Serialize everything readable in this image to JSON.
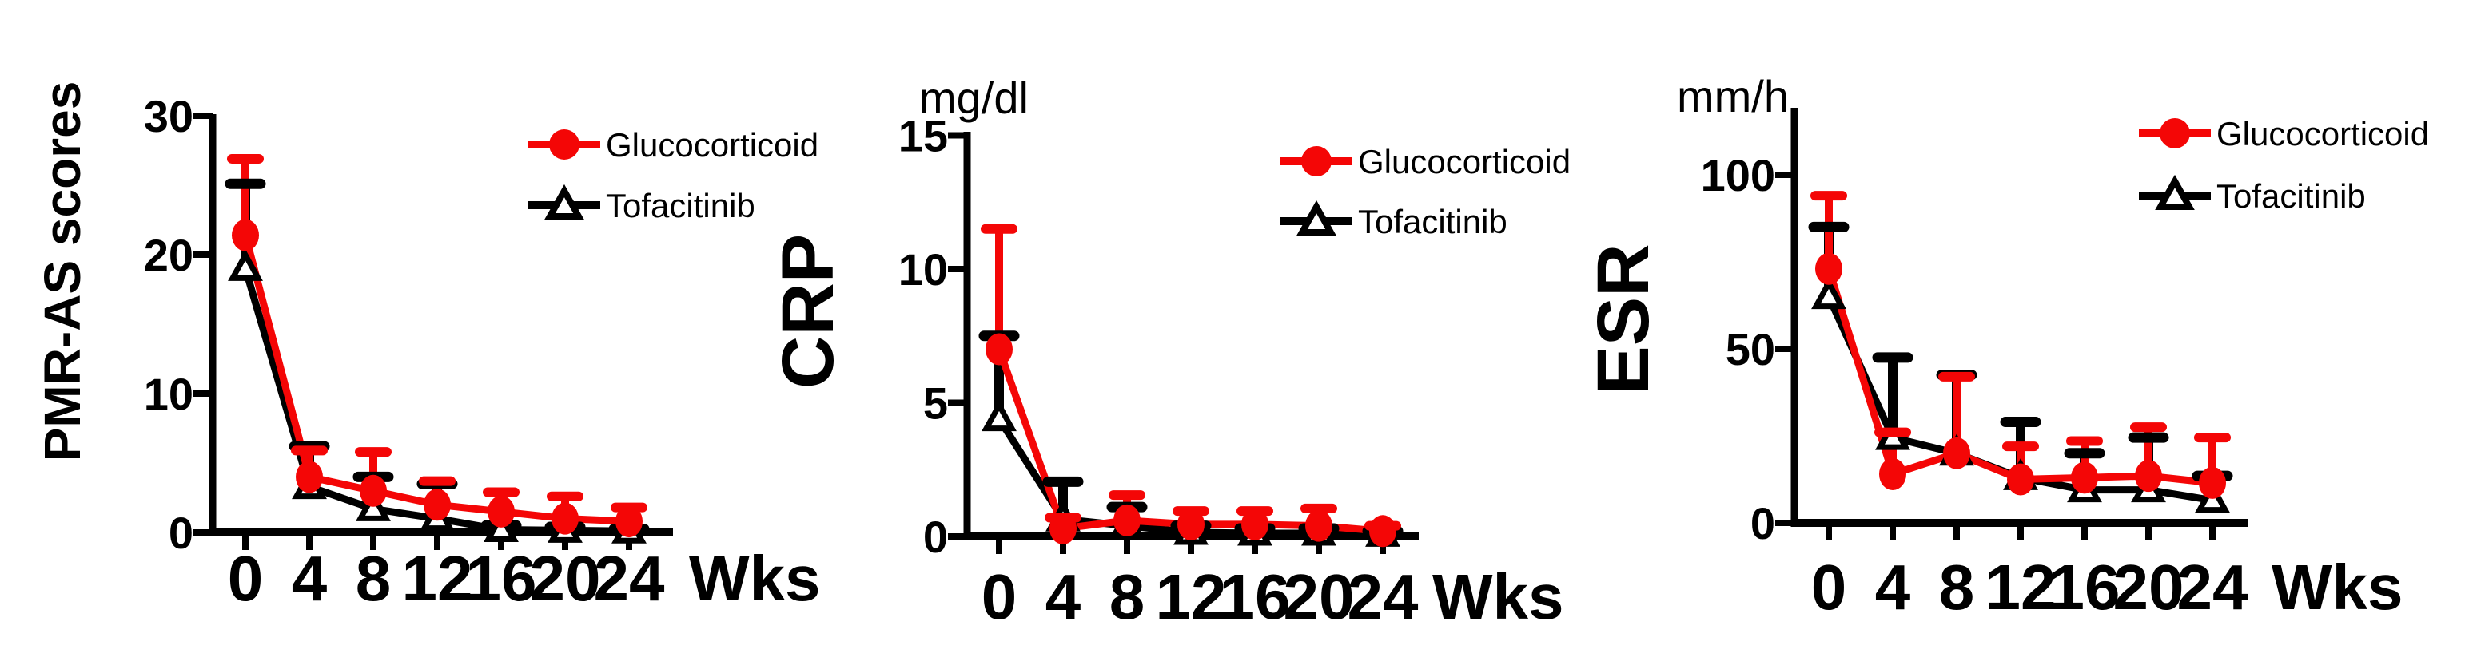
{
  "figure": {
    "description": "Time-course line charts with upper error bars over 24 weeks comparing Glucocorticoid vs Tofacitinib",
    "colors": {
      "glucocorticoid": "#f40606",
      "tofacitinib": "#000000",
      "axis": "#000000",
      "background": "#ffffff"
    }
  },
  "legend": {
    "items": [
      {
        "label": "Glucocorticoid",
        "marker": "filled-circle-icon",
        "color": "#f40606"
      },
      {
        "label": "Tofacitinib",
        "marker": "open-triangle-icon",
        "color": "#000000"
      }
    ]
  },
  "chart_data": [
    {
      "id": "pmr-as",
      "type": "line",
      "title": "",
      "ylabel": "PMR-AS scores",
      "unit": "",
      "xlabel": "Wks",
      "x": [
        0,
        4,
        8,
        12,
        16,
        20,
        24
      ],
      "y_ticks": [
        0,
        10,
        20,
        30
      ],
      "ylim": [
        0,
        31
      ],
      "grid": false,
      "legend_position": "upper-right",
      "error_bars": "upper-only",
      "series": [
        {
          "name": "Glucocorticoid",
          "marker": "filled-circle",
          "color": "#f40606",
          "values": [
            21.4,
            4.0,
            3.0,
            2.0,
            1.5,
            1.0,
            0.8
          ],
          "err_top": [
            26.9,
            5.9,
            5.8,
            3.7,
            2.9,
            2.6,
            1.8
          ]
        },
        {
          "name": "Tofacitinib",
          "marker": "open-triangle",
          "color": "#000000",
          "values": [
            19.0,
            3.3,
            1.7,
            1.0,
            0.2,
            0.15,
            0.1
          ],
          "err_top": [
            25.1,
            6.2,
            4.0,
            3.5,
            0.5,
            0.4,
            0.25
          ]
        }
      ]
    },
    {
      "id": "crp",
      "type": "line",
      "title": "",
      "ylabel": "CRP",
      "unit": "mg/dl",
      "xlabel": "Wks",
      "x": [
        0,
        4,
        8,
        12,
        16,
        20,
        24
      ],
      "y_ticks": [
        0,
        5,
        10,
        15
      ],
      "ylim": [
        0,
        15.5
      ],
      "grid": false,
      "legend_position": "upper-right",
      "error_bars": "upper-only",
      "series": [
        {
          "name": "Glucocorticoid",
          "marker": "filled-circle",
          "color": "#f40606",
          "values": [
            7.0,
            0.3,
            0.6,
            0.45,
            0.45,
            0.4,
            0.2
          ],
          "err_top": [
            11.5,
            0.7,
            1.55,
            0.95,
            0.95,
            1.05,
            0.4
          ]
        },
        {
          "name": "Tofacitinib",
          "marker": "open-triangle",
          "color": "#000000",
          "values": [
            4.4,
            0.65,
            0.4,
            0.15,
            0.12,
            0.12,
            0.08
          ],
          "err_top": [
            7.5,
            2.05,
            1.1,
            0.4,
            0.3,
            0.3,
            0.2
          ]
        }
      ]
    },
    {
      "id": "esr",
      "type": "line",
      "title": "",
      "ylabel": "ESR",
      "unit": "mm/h",
      "xlabel": "Wks",
      "x": [
        0,
        4,
        8,
        12,
        16,
        20,
        24
      ],
      "y_ticks": [
        0,
        50,
        100
      ],
      "ylim": [
        0,
        119
      ],
      "grid": false,
      "legend_position": "upper-right",
      "error_bars": "upper-only",
      "series": [
        {
          "name": "Glucocorticoid",
          "marker": "filled-circle",
          "color": "#f40606",
          "values": [
            73,
            14,
            20,
            12.5,
            13,
            13.5,
            11.5
          ],
          "err_top": [
            94,
            26,
            42,
            22,
            23.5,
            27.5,
            24.5
          ]
        },
        {
          "name": "Tofacitinib",
          "marker": "open-triangle",
          "color": "#000000",
          "values": [
            65,
            24.5,
            20,
            13,
            9.5,
            9.5,
            6.5
          ],
          "err_top": [
            85,
            47.5,
            42.5,
            29,
            20,
            24.5,
            13.5
          ]
        }
      ]
    }
  ]
}
